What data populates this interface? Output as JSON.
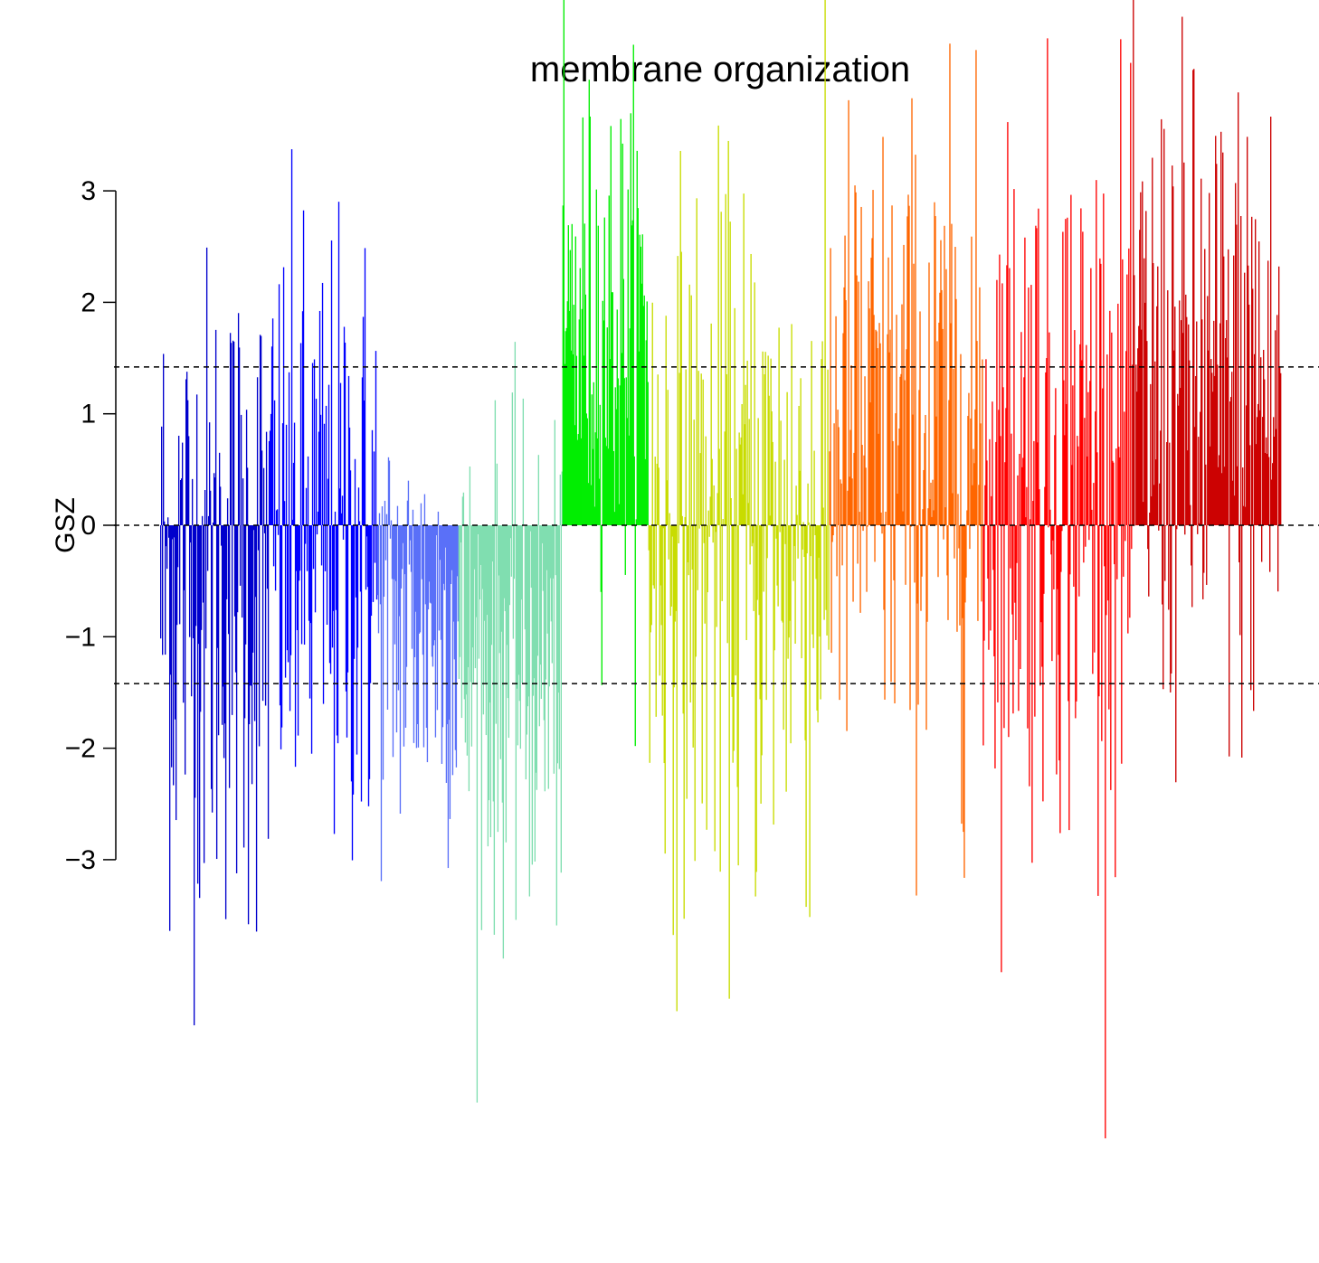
{
  "chart_data": {
    "type": "bar",
    "title": "membrane organization",
    "xlabel": "",
    "ylabel": "GSZ",
    "ylim": [
      -3.4,
      3.4
    ],
    "yticks": [
      -3,
      -2,
      -1,
      0,
      1,
      2,
      3
    ],
    "ytick_labels": [
      "−3",
      "−2",
      "−1",
      "0",
      "1",
      "2",
      "3"
    ],
    "reference_lines": [
      -1.42,
      0,
      1.42
    ],
    "grid": false,
    "legend": "none",
    "series": [
      {
        "color": "#0000CD",
        "bars": 120,
        "mean": -0.55,
        "spread": 1.5
      },
      {
        "color": "#0000FF",
        "bars": 120,
        "mean": -0.25,
        "spread": 1.45
      },
      {
        "color": "#5A70F8",
        "bars": 90,
        "mean": -0.9,
        "spread": 1.0
      },
      {
        "color": "#80DEB0",
        "bars": 115,
        "mean": -1.35,
        "spread": 1.1
      },
      {
        "color": "#00EE00",
        "bars": 95,
        "mean": 1.75,
        "spread": 1.1
      },
      {
        "color": "#C8DC00",
        "bars": 200,
        "mean": -0.15,
        "spread": 1.6
      },
      {
        "color": "#FF6600",
        "bars": 170,
        "mean": 0.65,
        "spread": 1.5
      },
      {
        "color": "#FF0000",
        "bars": 165,
        "mean": 0.55,
        "spread": 1.6
      },
      {
        "color": "#CC0000",
        "bars": 165,
        "mean": 1.05,
        "spread": 1.5
      }
    ]
  }
}
